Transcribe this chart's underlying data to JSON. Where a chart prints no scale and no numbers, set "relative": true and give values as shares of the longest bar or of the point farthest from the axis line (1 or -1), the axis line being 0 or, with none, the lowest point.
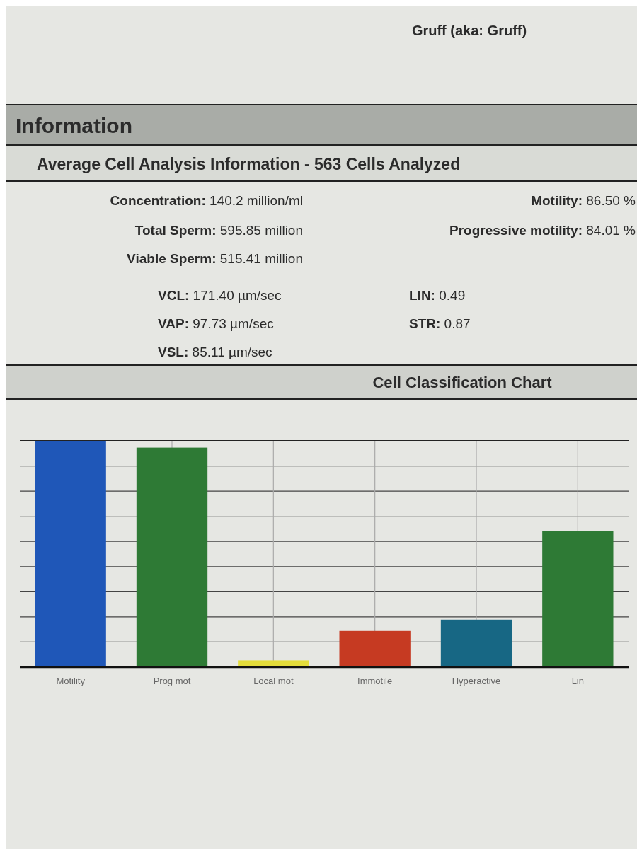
{
  "chart_data": {
    "type": "bar",
    "title": "Cell Classification Chart",
    "annotations": [
      "Gruff (aka: Gruff)",
      "Information",
      "Average Cell Analysis Information - 563 Cells Analyzed",
      "Concentration: 140.2 million/ml",
      "Motility: 86.50 %",
      "Total Sperm: 595.85 million",
      "Progressive motility: 84.01 %",
      "Viable Sperm: 515.41 million",
      "VCL: 171.40 µm/sec",
      "LIN: 0.49",
      "VAP: 97.73 µm/sec",
      "STR: 0.87",
      "VSL: 85.11 µm/sec"
    ],
    "categories": [
      "Motility",
      "Prog mot",
      "Local mot",
      "Immotile",
      "Hyperactive",
      "Lin"
    ],
    "values": [
      1,
      0.97,
      0.03,
      0.16,
      0.21,
      0.6
    ],
    "colors": [
      "#1f57b8",
      "#2e7a35",
      "#e3dc3a",
      "#c63a22",
      "#176784",
      "#2e7a35"
    ],
    "relative": true,
    "grid": true
  }
}
